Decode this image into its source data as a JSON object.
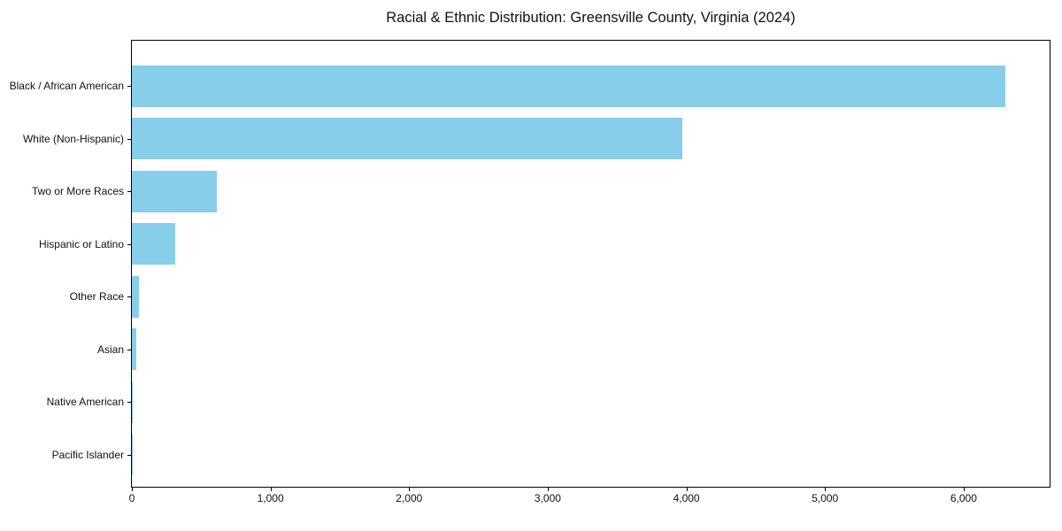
{
  "chart_data": {
    "type": "bar",
    "orientation": "horizontal",
    "title": "Racial & Ethnic Distribution: Greensville County, Virginia (2024)",
    "categories": [
      "Black / African American",
      "White (Non-Hispanic)",
      "Two or More Races",
      "Hispanic or Latino",
      "Other Race",
      "Asian",
      "Native American",
      "Pacific Islander"
    ],
    "values": [
      6300,
      3970,
      610,
      310,
      50,
      30,
      5,
      2
    ],
    "xlabel": "",
    "ylabel": "",
    "xlim": [
      0,
      6620
    ],
    "xticks": [
      0,
      1000,
      2000,
      3000,
      4000,
      5000,
      6000
    ],
    "xtick_labels": [
      "0",
      "1,000",
      "2,000",
      "3,000",
      "4,000",
      "5,000",
      "6,000"
    ],
    "bar_color": "#87CEEB",
    "background_color": "#ffffff",
    "axis_color": "#000000",
    "grid": false,
    "legend": false
  }
}
